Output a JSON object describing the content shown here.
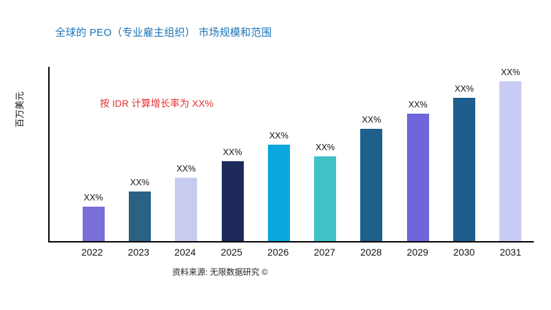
{
  "page": {
    "title": "全球的 PEO（专业雇主组织） 市场规模和范围",
    "annotation": "按 IDR 计算增长率为 XX%",
    "ylabel": "百万美元",
    "source": "资料来源: 无限数据研究 ©"
  },
  "colors": {
    "title": "#1B74B8",
    "annotation": "#E53030",
    "axis": "#000000",
    "background": "#FFFFFF"
  },
  "chart_data": {
    "type": "bar",
    "title": "全球的 PEO（专业雇主组织） 市场规模和范围",
    "xlabel": "",
    "ylabel": "百万美元",
    "categories": [
      "2022",
      "2023",
      "2024",
      "2025",
      "2026",
      "2027",
      "2028",
      "2029",
      "2030",
      "2031"
    ],
    "values": [
      50,
      72,
      92,
      116,
      140,
      123,
      163,
      185,
      208,
      232
    ],
    "values_note": "relative heights estimated from pixels; actual figures masked as XX% in source image",
    "bar_labels": [
      "XX%",
      "XX%",
      "XX%",
      "XX%",
      "XX%",
      "XX%",
      "XX%",
      "XX%",
      "XX%",
      "XX%"
    ],
    "bar_colors": [
      "#7A6FD6",
      "#2A6284",
      "#C6CBEF",
      "#1E2A5C",
      "#09A8DC",
      "#3FC2C6",
      "#1F5F8B",
      "#6E66DA",
      "#1D5E8C",
      "#C9CCF2"
    ],
    "ylim": [
      0,
      255
    ],
    "grid": false,
    "legend": false,
    "annotation": "按 IDR 计算增长率为 XX%",
    "source": "资料来源: 无限数据研究 ©"
  }
}
